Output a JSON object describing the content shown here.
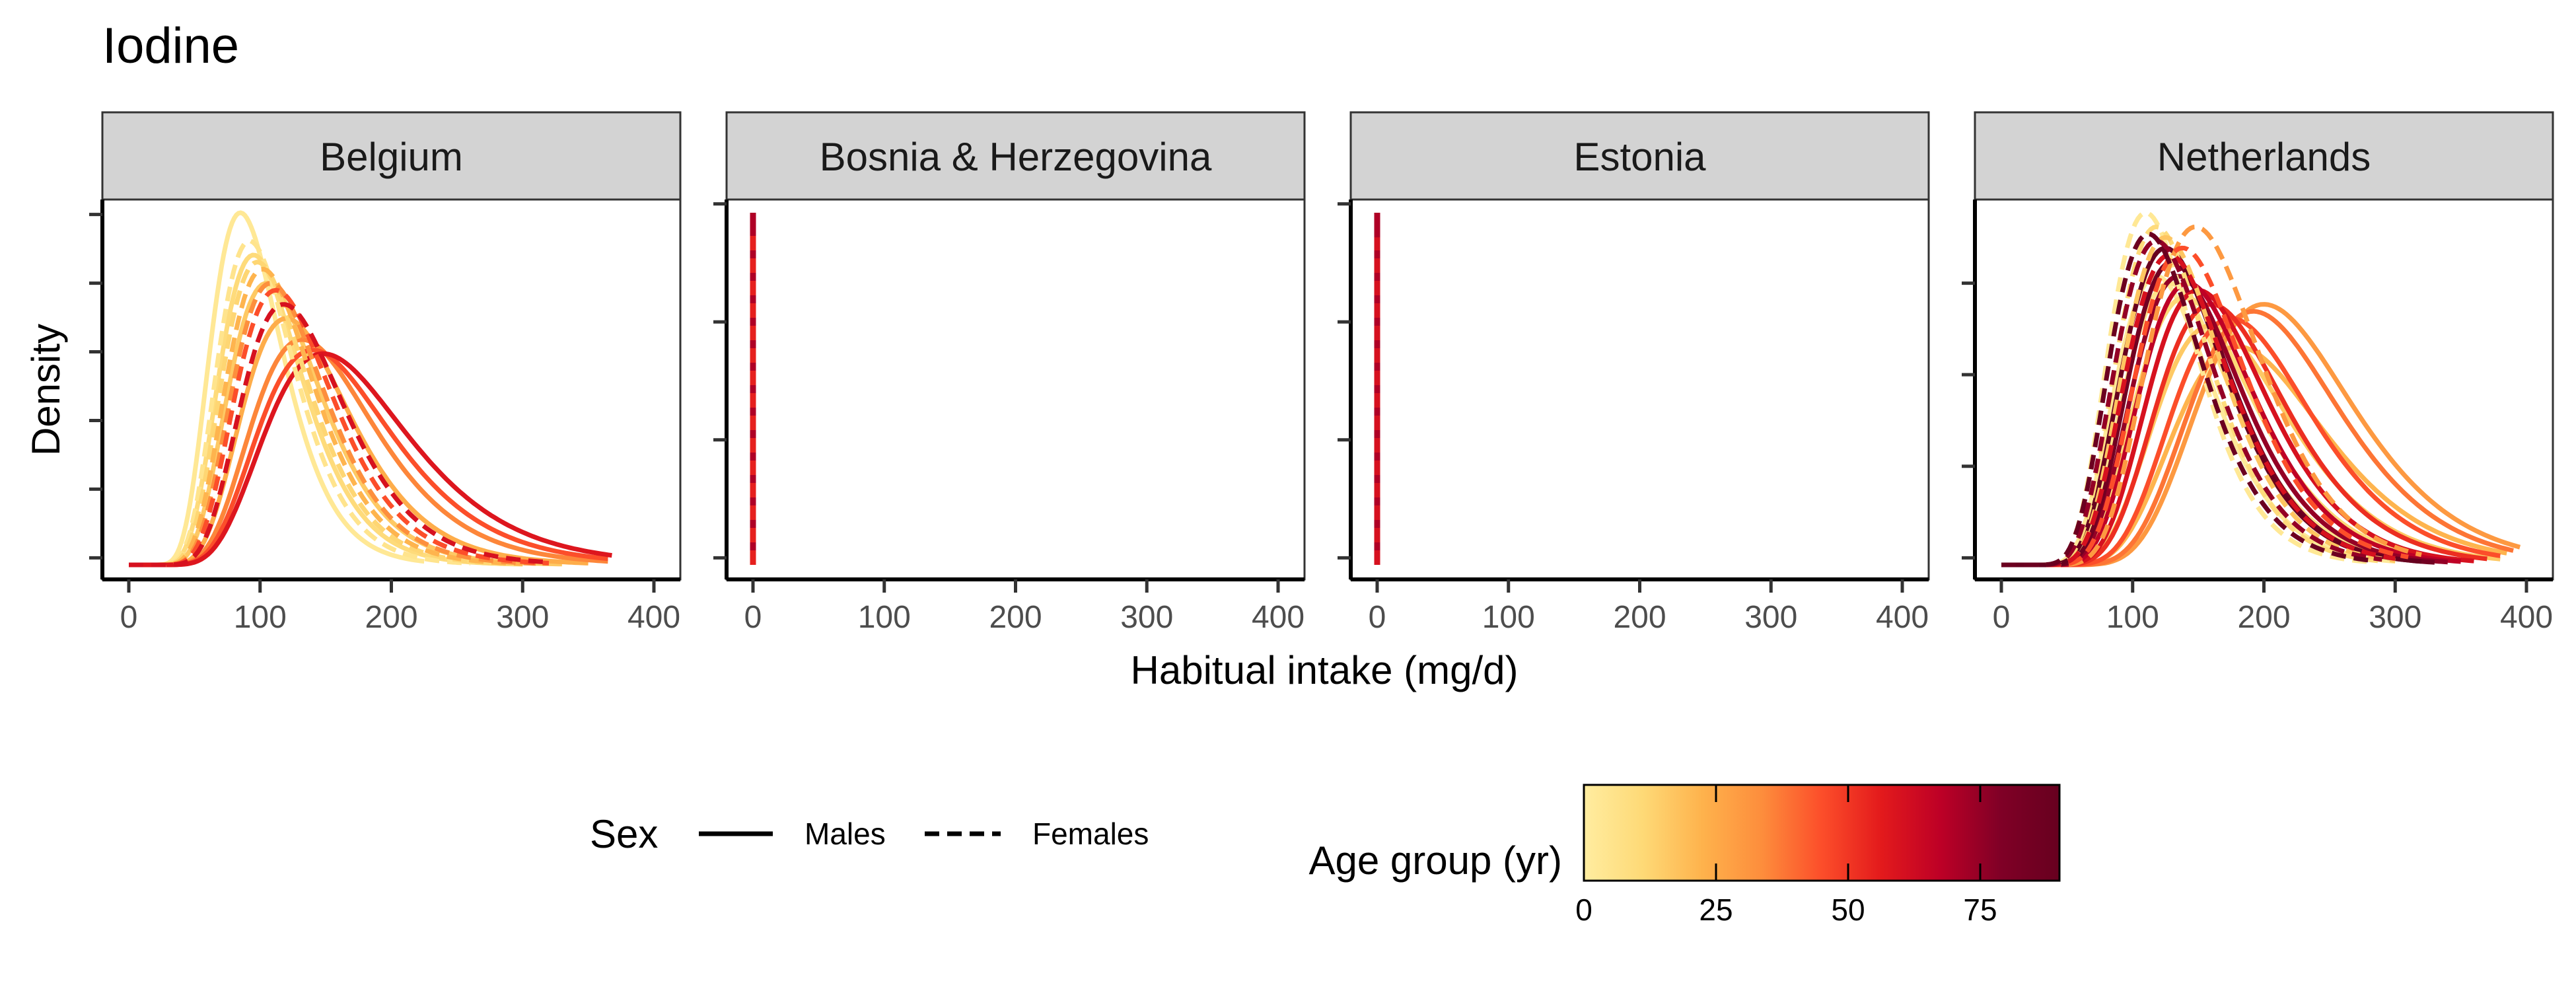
{
  "chart_data": {
    "type": "line",
    "title": "Iodine",
    "xlabel": "Habitual intake (mg/d)",
    "ylabel": "Density",
    "xlim": [
      0,
      400
    ],
    "x_ticks": [
      0,
      100,
      200,
      300,
      400
    ],
    "facets": [
      {
        "label": "Belgium",
        "curves": [
          {
            "sex": "Males",
            "age": 3,
            "mode": 85,
            "sd": 28,
            "min": 0,
            "max": 225,
            "peak": 1.0
          },
          {
            "sex": "Males",
            "age": 10,
            "mode": 95,
            "sd": 32,
            "min": 0,
            "max": 300,
            "peak": 0.88
          },
          {
            "sex": "Males",
            "age": 16,
            "mode": 105,
            "sd": 36,
            "min": 0,
            "max": 330,
            "peak": 0.8
          },
          {
            "sex": "Males",
            "age": 24,
            "mode": 120,
            "sd": 42,
            "min": 0,
            "max": 350,
            "peak": 0.7
          },
          {
            "sex": "Males",
            "age": 35,
            "mode": 132,
            "sd": 48,
            "min": 0,
            "max": 365,
            "peak": 0.64
          },
          {
            "sex": "Males",
            "age": 45,
            "mode": 140,
            "sd": 52,
            "min": 0,
            "max": 365,
            "peak": 0.61
          },
          {
            "sex": "Males",
            "age": 58,
            "mode": 148,
            "sd": 56,
            "min": 0,
            "max": 368,
            "peak": 0.6
          },
          {
            "sex": "Females",
            "age": 5,
            "mode": 92,
            "sd": 30,
            "min": 0,
            "max": 260,
            "peak": 0.92
          },
          {
            "sex": "Females",
            "age": 12,
            "mode": 98,
            "sd": 33,
            "min": 0,
            "max": 290,
            "peak": 0.86
          },
          {
            "sex": "Females",
            "age": 22,
            "mode": 102,
            "sd": 34,
            "min": 0,
            "max": 300,
            "peak": 0.84
          },
          {
            "sex": "Females",
            "age": 33,
            "mode": 108,
            "sd": 36,
            "min": 0,
            "max": 310,
            "peak": 0.8
          },
          {
            "sex": "Females",
            "age": 45,
            "mode": 112,
            "sd": 38,
            "min": 0,
            "max": 320,
            "peak": 0.78
          },
          {
            "sex": "Females",
            "age": 60,
            "mode": 118,
            "sd": 40,
            "min": 0,
            "max": 320,
            "peak": 0.74
          }
        ]
      },
      {
        "label": "Bosnia & Herzegovina",
        "curves": [
          {
            "sex": "Males",
            "age": 50,
            "mode": 0,
            "sd": 0,
            "min": 0,
            "max": 0,
            "peak": 0.97
          },
          {
            "sex": "Females",
            "age": 55,
            "mode": 0,
            "sd": 0,
            "min": 0,
            "max": 0,
            "peak": 0.94
          },
          {
            "sex": "Males",
            "age": 70,
            "mode": 0,
            "sd": 0,
            "min": 0,
            "max": 0,
            "peak": 1.0
          }
        ]
      },
      {
        "label": "Estonia",
        "curves": [
          {
            "sex": "Males",
            "age": 55,
            "mode": 0,
            "sd": 0,
            "min": 0,
            "max": 0,
            "peak": 0.97
          },
          {
            "sex": "Females",
            "age": 60,
            "mode": 0,
            "sd": 0,
            "min": 0,
            "max": 0,
            "peak": 0.93
          },
          {
            "sex": "Males",
            "age": 70,
            "mode": 0,
            "sd": 0,
            "min": 0,
            "max": 0,
            "peak": 1.0
          }
        ]
      },
      {
        "label": "Netherlands",
        "curves": [
          {
            "sex": "Males",
            "age": 2,
            "mode": 118,
            "sd": 38,
            "min": 0,
            "max": 300,
            "peak": 0.82
          },
          {
            "sex": "Males",
            "age": 6,
            "mode": 128,
            "sd": 42,
            "min": 0,
            "max": 320,
            "peak": 0.8
          },
          {
            "sex": "Males",
            "age": 11,
            "mode": 140,
            "sd": 46,
            "min": 0,
            "max": 340,
            "peak": 0.76
          },
          {
            "sex": "Males",
            "age": 16,
            "mode": 160,
            "sd": 52,
            "min": 0,
            "max": 380,
            "peak": 0.68
          },
          {
            "sex": "Males",
            "age": 22,
            "mode": 180,
            "sd": 58,
            "min": 0,
            "max": 385,
            "peak": 0.62
          },
          {
            "sex": "Males",
            "age": 30,
            "mode": 200,
            "sd": 60,
            "min": 0,
            "max": 395,
            "peak": 0.74
          },
          {
            "sex": "Males",
            "age": 38,
            "mode": 192,
            "sd": 58,
            "min": 0,
            "max": 390,
            "peak": 0.72
          },
          {
            "sex": "Males",
            "age": 45,
            "mode": 175,
            "sd": 54,
            "min": 0,
            "max": 380,
            "peak": 0.7
          },
          {
            "sex": "Males",
            "age": 52,
            "mode": 160,
            "sd": 50,
            "min": 0,
            "max": 370,
            "peak": 0.74
          },
          {
            "sex": "Males",
            "age": 60,
            "mode": 150,
            "sd": 46,
            "min": 0,
            "max": 360,
            "peak": 0.78
          },
          {
            "sex": "Males",
            "age": 67,
            "mode": 142,
            "sd": 44,
            "min": 0,
            "max": 350,
            "peak": 0.8
          },
          {
            "sex": "Males",
            "age": 75,
            "mode": 135,
            "sd": 42,
            "min": 0,
            "max": 340,
            "peak": 0.82
          },
          {
            "sex": "Males",
            "age": 85,
            "mode": 130,
            "sd": 40,
            "min": 0,
            "max": 330,
            "peak": 0.86
          },
          {
            "sex": "Males",
            "age": 90,
            "mode": 125,
            "sd": 40,
            "min": 0,
            "max": 320,
            "peak": 0.9
          },
          {
            "sex": "Females",
            "age": 3,
            "mode": 110,
            "sd": 34,
            "min": 0,
            "max": 280,
            "peak": 1.0
          },
          {
            "sex": "Females",
            "age": 10,
            "mode": 118,
            "sd": 36,
            "min": 0,
            "max": 290,
            "peak": 0.96
          },
          {
            "sex": "Females",
            "age": 17,
            "mode": 125,
            "sd": 38,
            "min": 0,
            "max": 300,
            "peak": 0.93
          },
          {
            "sex": "Females",
            "age": 30,
            "mode": 148,
            "sd": 44,
            "min": 0,
            "max": 320,
            "peak": 0.96
          },
          {
            "sex": "Females",
            "age": 45,
            "mode": 138,
            "sd": 42,
            "min": 0,
            "max": 310,
            "peak": 0.9
          },
          {
            "sex": "Females",
            "age": 60,
            "mode": 128,
            "sd": 40,
            "min": 0,
            "max": 300,
            "peak": 0.88
          },
          {
            "sex": "Females",
            "age": 75,
            "mode": 118,
            "sd": 38,
            "min": 0,
            "max": 290,
            "peak": 0.92
          },
          {
            "sex": "Females",
            "age": 88,
            "mode": 112,
            "sd": 36,
            "min": 0,
            "max": 280,
            "peak": 0.94
          }
        ]
      }
    ],
    "legend": {
      "sex_title": "Sex",
      "sex_entries": [
        {
          "label": "Males",
          "linetype": "solid"
        },
        {
          "label": "Females",
          "linetype": "dashed"
        }
      ],
      "color_title": "Age group (yr)",
      "color_ticks": [
        0,
        25,
        50,
        75
      ],
      "color_range": [
        0,
        90
      ],
      "palette": [
        "#ffeda0",
        "#fed976",
        "#feb24c",
        "#fd8d3c",
        "#fc4e2a",
        "#e31a1c",
        "#bd0026",
        "#800026",
        "#67001f"
      ],
      "placement": "bottom"
    },
    "grid": false,
    "strip_background": "#d3d3d3"
  }
}
